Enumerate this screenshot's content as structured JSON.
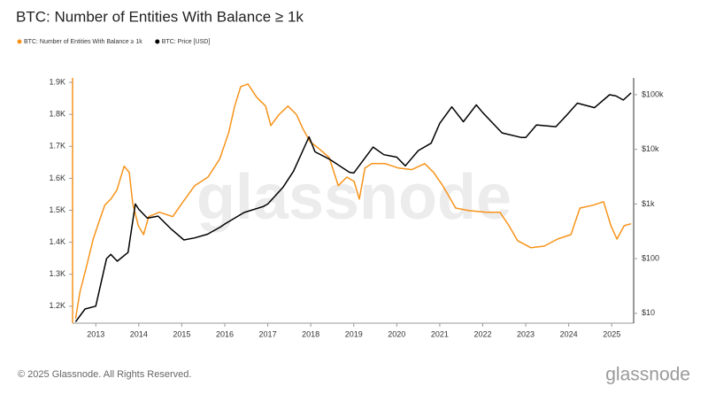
{
  "chart_data": {
    "type": "line",
    "title": "BTC: Number of Entities With Balance ≥ 1k",
    "xlim": [
      2012.46,
      2025.51
    ],
    "xticks": [
      2013,
      2014,
      2015,
      2016,
      2017,
      2018,
      2019,
      2020,
      2021,
      2022,
      2023,
      2024,
      2025
    ],
    "ylim": [
      1147,
      1914
    ],
    "yticks": [
      {
        "value": 1200,
        "label": "1.2K"
      },
      {
        "value": 1300,
        "label": "1.3K"
      },
      {
        "value": 1400,
        "label": "1.4K"
      },
      {
        "value": 1500,
        "label": "1.5K"
      },
      {
        "value": 1600,
        "label": "1.6K"
      },
      {
        "value": 1700,
        "label": "1.7K"
      },
      {
        "value": 1800,
        "label": "1.8K"
      },
      {
        "value": 1900,
        "label": "1.9K"
      }
    ],
    "y2lim": [
      6.6,
      203000
    ],
    "y2scale": "log",
    "y2ticks": [
      {
        "value": 10,
        "label": "$10"
      },
      {
        "value": 100,
        "label": "$100"
      },
      {
        "value": 1000,
        "label": "$1k"
      },
      {
        "value": 10000,
        "label": "$10k"
      },
      {
        "value": 100000,
        "label": "$100k"
      }
    ],
    "series": [
      {
        "name": "BTC: Number of Entities With Balance ≥ 1k",
        "color": "#f7931a",
        "axis": "y",
        "x": [
          2012.53,
          2012.63,
          2012.79,
          2012.94,
          2013.08,
          2013.21,
          2013.35,
          2013.49,
          2013.66,
          2013.78,
          2013.86,
          2013.99,
          2014.11,
          2014.23,
          2014.48,
          2014.79,
          2015.0,
          2015.3,
          2015.61,
          2015.88,
          2016.09,
          2016.23,
          2016.37,
          2016.54,
          2016.74,
          2016.95,
          2017.07,
          2017.26,
          2017.47,
          2017.67,
          2017.81,
          2017.98,
          2018.19,
          2018.43,
          2018.64,
          2018.84,
          2019.01,
          2019.13,
          2019.26,
          2019.42,
          2019.73,
          2020.04,
          2020.35,
          2020.65,
          2020.86,
          2021.07,
          2021.37,
          2021.68,
          2022.09,
          2022.4,
          2022.61,
          2022.81,
          2023.12,
          2023.43,
          2023.74,
          2024.05,
          2024.26,
          2024.57,
          2024.81,
          2024.98,
          2025.12,
          2025.29,
          2025.45
        ],
        "values": [
          1161,
          1244,
          1327,
          1410,
          1466,
          1516,
          1535,
          1563,
          1638,
          1618,
          1521,
          1452,
          1424,
          1480,
          1494,
          1480,
          1521,
          1577,
          1604,
          1660,
          1743,
          1826,
          1887,
          1895,
          1854,
          1826,
          1765,
          1799,
          1826,
          1799,
          1757,
          1715,
          1693,
          1665,
          1577,
          1604,
          1590,
          1535,
          1632,
          1646,
          1646,
          1632,
          1627,
          1646,
          1618,
          1577,
          1507,
          1499,
          1494,
          1494,
          1452,
          1405,
          1383,
          1388,
          1410,
          1424,
          1507,
          1516,
          1527,
          1452,
          1410,
          1452,
          1458
        ]
      },
      {
        "name": "BTC: Price [USD]",
        "color": "#000000",
        "axis": "y2",
        "x": [
          2012.53,
          2012.75,
          2013.0,
          2013.25,
          2013.35,
          2013.5,
          2013.75,
          2013.92,
          2014.0,
          2014.2,
          2014.45,
          2014.75,
          2015.05,
          2015.3,
          2015.6,
          2015.9,
          2016.0,
          2016.45,
          2016.9,
          2017.0,
          2017.35,
          2017.6,
          2017.96,
          2018.1,
          2018.45,
          2018.9,
          2019.0,
          2019.45,
          2019.7,
          2020.0,
          2020.2,
          2020.5,
          2020.8,
          2021.0,
          2021.28,
          2021.55,
          2021.85,
          2022.0,
          2022.45,
          2022.9,
          2023.0,
          2023.25,
          2023.7,
          2023.95,
          2024.2,
          2024.6,
          2024.95,
          2025.1,
          2025.27,
          2025.45
        ],
        "values": [
          7,
          12,
          13.5,
          100,
          120,
          90,
          130,
          1000,
          800,
          550,
          600,
          350,
          220,
          240,
          280,
          380,
          430,
          700,
          900,
          1000,
          2000,
          4000,
          17000,
          9000,
          6500,
          3800,
          3700,
          11000,
          8000,
          7200,
          5000,
          9500,
          13000,
          30000,
          60000,
          32000,
          65000,
          47000,
          20000,
          16500,
          16500,
          28000,
          26000,
          42000,
          70000,
          58000,
          100000,
          95000,
          80000,
          108000
        ]
      }
    ]
  },
  "watermark": "glassnode",
  "footer": {
    "copyright": "© 2025 Glassnode. All Rights Reserved.",
    "logo": "glassnode"
  }
}
